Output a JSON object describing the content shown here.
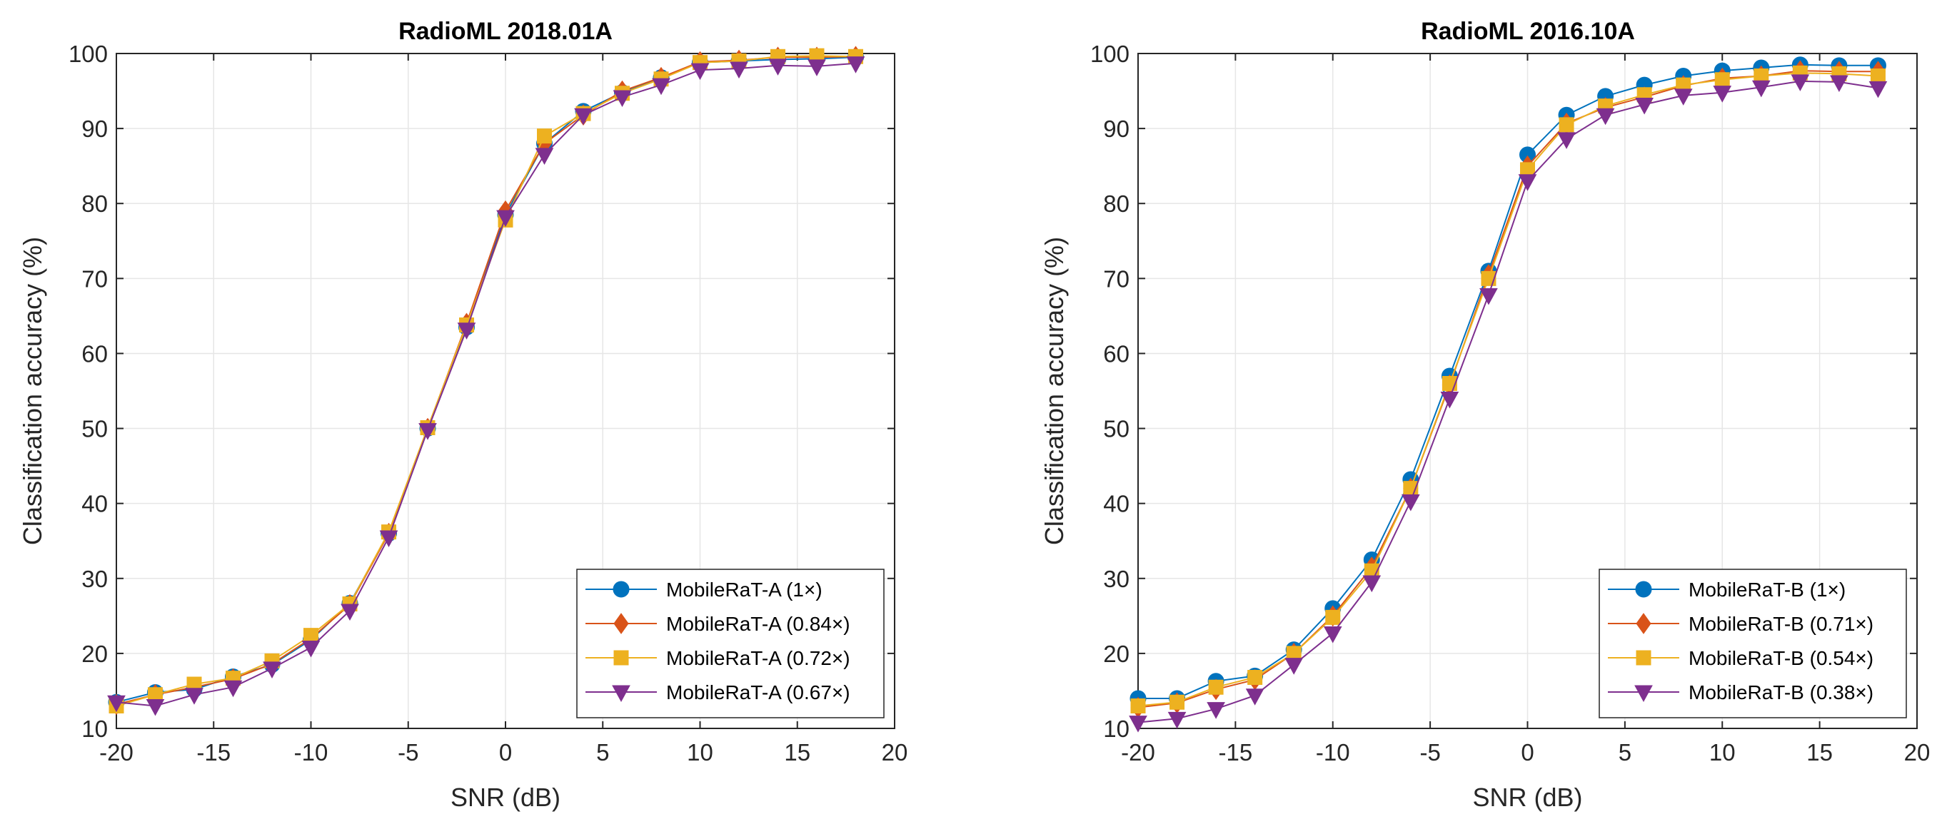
{
  "chart_data": [
    {
      "type": "line",
      "title": "RadioML 2018.01A",
      "xlabel": "SNR (dB)",
      "ylabel": "Classification accuracy (%)",
      "xlim": [
        -20,
        20
      ],
      "ylim": [
        10,
        100
      ],
      "xticks": [
        "-20",
        "-15",
        "-10",
        "-5",
        "0",
        "5",
        "10",
        "15",
        "20"
      ],
      "yticks": [
        "10",
        "20",
        "30",
        "40",
        "50",
        "60",
        "70",
        "80",
        "90",
        "100"
      ],
      "grid": true,
      "legend_position": "bottom-right",
      "x": [
        -20,
        -18,
        -16,
        -14,
        -12,
        -10,
        -8,
        -6,
        -4,
        -2,
        0,
        2,
        4,
        6,
        8,
        10,
        12,
        14,
        16,
        18
      ],
      "series": [
        {
          "name": "MobileRaT-A (1×)",
          "marker": "circle",
          "color": "#0072bd",
          "values": [
            13.5,
            14.8,
            15.2,
            16.9,
            18.5,
            21.8,
            26.7,
            36.0,
            50.0,
            63.5,
            78.5,
            88.0,
            92.3,
            94.8,
            96.8,
            98.8,
            99.0,
            99.2,
            99.3,
            99.5
          ]
        },
        {
          "name": "MobileRaT-A (0.84×)",
          "marker": "diamond",
          "color": "#d95319",
          "values": [
            13.2,
            14.5,
            15.5,
            16.6,
            18.6,
            22.0,
            26.5,
            36.0,
            50.0,
            64.0,
            79.0,
            88.0,
            91.8,
            95.0,
            96.8,
            98.9,
            99.1,
            99.5,
            99.5,
            99.6
          ]
        },
        {
          "name": "MobileRaT-A (0.72×)",
          "marker": "square",
          "color": "#edb120",
          "values": [
            13.0,
            14.5,
            15.9,
            16.7,
            19.0,
            22.4,
            26.6,
            36.2,
            50.1,
            63.8,
            77.8,
            89.0,
            92.0,
            94.7,
            96.6,
            98.8,
            99.0,
            99.6,
            99.7,
            99.6
          ]
        },
        {
          "name": "MobileRaT-A (0.67×)",
          "marker": "triangle-down",
          "color": "#7e2f8e",
          "values": [
            13.5,
            13.0,
            14.5,
            15.5,
            18.0,
            20.8,
            25.7,
            35.5,
            49.8,
            63.2,
            78.2,
            86.5,
            91.8,
            94.2,
            95.8,
            97.8,
            98.0,
            98.4,
            98.3,
            98.7
          ]
        }
      ]
    },
    {
      "type": "line",
      "title": "RadioML 2016.10A",
      "xlabel": "SNR (dB)",
      "ylabel": "Classification accuracy (%)",
      "xlim": [
        -20,
        20
      ],
      "ylim": [
        10,
        100
      ],
      "xticks": [
        "-20",
        "-15",
        "-10",
        "-5",
        "0",
        "5",
        "10",
        "15",
        "20"
      ],
      "yticks": [
        "10",
        "20",
        "30",
        "40",
        "50",
        "60",
        "70",
        "80",
        "90",
        "100"
      ],
      "grid": true,
      "legend_position": "bottom-right",
      "x": [
        -20,
        -18,
        -16,
        -14,
        -12,
        -10,
        -8,
        -6,
        -4,
        -2,
        0,
        2,
        4,
        6,
        8,
        10,
        12,
        14,
        16,
        18
      ],
      "series": [
        {
          "name": "MobileRaT-B (1×)",
          "marker": "circle",
          "color": "#0072bd",
          "values": [
            14.0,
            14.0,
            16.3,
            17.0,
            20.5,
            26.0,
            32.5,
            43.2,
            57.0,
            71.0,
            86.5,
            91.8,
            94.3,
            95.8,
            97.0,
            97.7,
            98.1,
            98.5,
            98.4,
            98.4
          ]
        },
        {
          "name": "MobileRaT-B (0.71×)",
          "marker": "diamond",
          "color": "#d95319",
          "values": [
            12.8,
            13.4,
            15.2,
            16.5,
            20.0,
            25.0,
            31.5,
            42.0,
            55.8,
            70.5,
            85.0,
            90.7,
            92.8,
            94.2,
            95.7,
            96.7,
            97.0,
            97.7,
            97.6,
            97.6
          ]
        },
        {
          "name": "MobileRaT-B (0.54×)",
          "marker": "square",
          "color": "#edb120",
          "values": [
            13.0,
            13.5,
            15.5,
            16.8,
            20.0,
            24.8,
            31.0,
            42.0,
            56.0,
            70.0,
            84.5,
            90.5,
            93.0,
            94.5,
            95.8,
            96.5,
            97.0,
            97.4,
            97.3,
            97.0
          ]
        },
        {
          "name": "MobileRaT-B (0.38×)",
          "marker": "triangle-down",
          "color": "#7e2f8e",
          "values": [
            10.8,
            11.3,
            12.6,
            14.4,
            18.5,
            22.7,
            29.5,
            40.3,
            54.0,
            67.8,
            83.0,
            88.6,
            91.8,
            93.2,
            94.4,
            94.8,
            95.5,
            96.3,
            96.2,
            95.4
          ]
        }
      ]
    }
  ]
}
